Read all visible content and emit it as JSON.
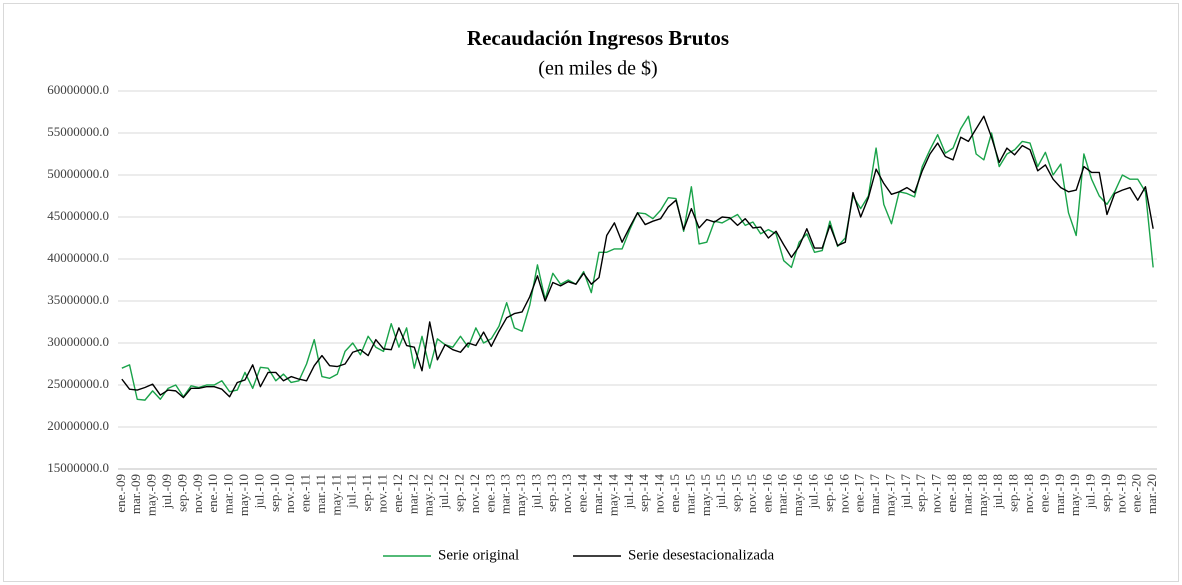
{
  "chart_data": {
    "type": "line",
    "title": "Recaudación Ingresos Brutos",
    "subtitle": "(en miles de $)",
    "categories": [
      "ene.-09",
      null,
      "mar.-09",
      null,
      "may.-09",
      null,
      "jul.-09",
      null,
      "sep.-09",
      null,
      "nov.-09",
      null,
      "ene.-10",
      null,
      "mar.-10",
      null,
      "may.-10",
      null,
      "jul.-10",
      null,
      "sep.-10",
      null,
      "nov.-10",
      null,
      "ene.-11",
      null,
      "mar.-11",
      null,
      "may.-11",
      null,
      "jul.-11",
      null,
      "sep.-11",
      null,
      "nov.-11",
      null,
      "ene.-12",
      null,
      "mar.-12",
      null,
      "may.-12",
      null,
      "jul.-12",
      null,
      "sep.-12",
      null,
      "nov.-12",
      null,
      "ene.-13",
      null,
      "mar.-13",
      null,
      "may.-13",
      null,
      "jul.-13",
      null,
      "sep.-13",
      null,
      "nov.-13",
      null,
      "ene.-14",
      null,
      "mar.-14",
      null,
      "may.-14",
      null,
      "jul.-14",
      null,
      "sep.-14",
      null,
      "nov.-14",
      null,
      "ene.-15",
      null,
      "mar.-15",
      null,
      "may.-15",
      null,
      "jul.-15",
      null,
      "sep.-15",
      null,
      "nov.-15",
      null,
      "ene.-16",
      null,
      "mar.-16",
      null,
      "may.-16",
      null,
      "jul.-16",
      null,
      "sep.-16",
      null,
      "nov.-16",
      null,
      "ene.-17",
      null,
      "mar.-17",
      null,
      "may.-17",
      null,
      "jul.-17",
      null,
      "sep.-17",
      null,
      "nov.-17",
      null,
      "ene.-18",
      null,
      "mar.-18",
      null,
      "may.-18",
      null,
      "jul.-18",
      null,
      "sep.-18",
      null,
      "nov.-18",
      null,
      "ene.-19",
      null,
      "mar.-19",
      null,
      "may.-19",
      null,
      "jul.-19",
      null,
      "sep.-19",
      null,
      "nov.-19",
      null,
      "ene.-20",
      null,
      "mar.-20"
    ],
    "series": [
      {
        "name": "Serie original",
        "color": "#1aa34a",
        "values": [
          27000000,
          27400000,
          23300000,
          23200000,
          24300000,
          23300000,
          24600000,
          25000000,
          23600000,
          24900000,
          24700000,
          25000000,
          25000000,
          25500000,
          24200000,
          24400000,
          26500000,
          24600000,
          27100000,
          27000000,
          25500000,
          26300000,
          25300000,
          25500000,
          27500000,
          30400000,
          26000000,
          25800000,
          26300000,
          29000000,
          30000000,
          28600000,
          30800000,
          29500000,
          29000000,
          32300000,
          29500000,
          31800000,
          27000000,
          30800000,
          27000000,
          30500000,
          29800000,
          29500000,
          30800000,
          29500000,
          31800000,
          30000000,
          30500000,
          32000000,
          34800000,
          31800000,
          31400000,
          34500000,
          39300000,
          35200000,
          38300000,
          37000000,
          37500000,
          37000000,
          38500000,
          36000000,
          40800000,
          40800000,
          41200000,
          41200000,
          43500000,
          45500000,
          45400000,
          44800000,
          45800000,
          47300000,
          47200000,
          43300000,
          48600000,
          41800000,
          42000000,
          44500000,
          44300000,
          44800000,
          45300000,
          44000000,
          44400000,
          43000000,
          43500000,
          43000000,
          39800000,
          39000000,
          42000000,
          43000000,
          40800000,
          41000000,
          44500000,
          41500000,
          42500000,
          47500000,
          46000000,
          47500000,
          53200000,
          46500000,
          44200000,
          48000000,
          47800000,
          47400000,
          51000000,
          53000000,
          54800000,
          52600000,
          53200000,
          55500000,
          57000000,
          52500000,
          51800000,
          55000000,
          51000000,
          52500000,
          53000000,
          54000000,
          53800000,
          51000000,
          52700000,
          50000000,
          51300000,
          45500000,
          42800000,
          52500000,
          49500000,
          47500000,
          46500000,
          48000000,
          50000000,
          49500000,
          49500000,
          48000000,
          39000000
        ]
      },
      {
        "name": "Serie desestacionalizada",
        "color": "#000000",
        "values": [
          25700000,
          24500000,
          24400000,
          24700000,
          25100000,
          23800000,
          24400000,
          24300000,
          23500000,
          24600000,
          24600000,
          24800000,
          24800000,
          24500000,
          23600000,
          25300000,
          25600000,
          27400000,
          24800000,
          26500000,
          26500000,
          25500000,
          26000000,
          25700000,
          25500000,
          27300000,
          28500000,
          27300000,
          27200000,
          27500000,
          28900000,
          29200000,
          28500000,
          30400000,
          29300000,
          29200000,
          31800000,
          29700000,
          29500000,
          26700000,
          32500000,
          28000000,
          29800000,
          29200000,
          28900000,
          30000000,
          29700000,
          31300000,
          29600000,
          31400000,
          33000000,
          33500000,
          33700000,
          35500000,
          38000000,
          35000000,
          37200000,
          36800000,
          37300000,
          37000000,
          38300000,
          37000000,
          37800000,
          42800000,
          44300000,
          42000000,
          43800000,
          45500000,
          44100000,
          44500000,
          44800000,
          46200000,
          47000000,
          43500000,
          46000000,
          43700000,
          44700000,
          44400000,
          45000000,
          44900000,
          44000000,
          44800000,
          43700000,
          43800000,
          42500000,
          43300000,
          41700000,
          40200000,
          41500000,
          43600000,
          41300000,
          41300000,
          44000000,
          41600000,
          42000000,
          47900000,
          45000000,
          47300000,
          50700000,
          49000000,
          47700000,
          48000000,
          48500000,
          47900000,
          50500000,
          52500000,
          53800000,
          52200000,
          51800000,
          54500000,
          54000000,
          55500000,
          57000000,
          54500000,
          51500000,
          53200000,
          52400000,
          53500000,
          53000000,
          50500000,
          51200000,
          49500000,
          48500000,
          48000000,
          48200000,
          51000000,
          50300000,
          50300000,
          45300000,
          47800000,
          48200000,
          48500000,
          47000000,
          48600000,
          43600000
        ]
      }
    ],
    "ylim": [
      15000000,
      60000000
    ],
    "yticks": [
      {
        "value": 15000000,
        "label": "15000000.0"
      },
      {
        "value": 20000000,
        "label": "20000000.0"
      },
      {
        "value": 25000000,
        "label": "25000000.0"
      },
      {
        "value": 30000000,
        "label": "30000000.0"
      },
      {
        "value": 35000000,
        "label": "35000000.0"
      },
      {
        "value": 40000000,
        "label": "40000000.0"
      },
      {
        "value": 45000000,
        "label": "45000000.0"
      },
      {
        "value": 50000000,
        "label": "50000000.0"
      },
      {
        "value": 55000000,
        "label": "55000000.0"
      },
      {
        "value": 60000000,
        "label": "60000000.0"
      }
    ],
    "grid": true,
    "legend": "bottom"
  }
}
